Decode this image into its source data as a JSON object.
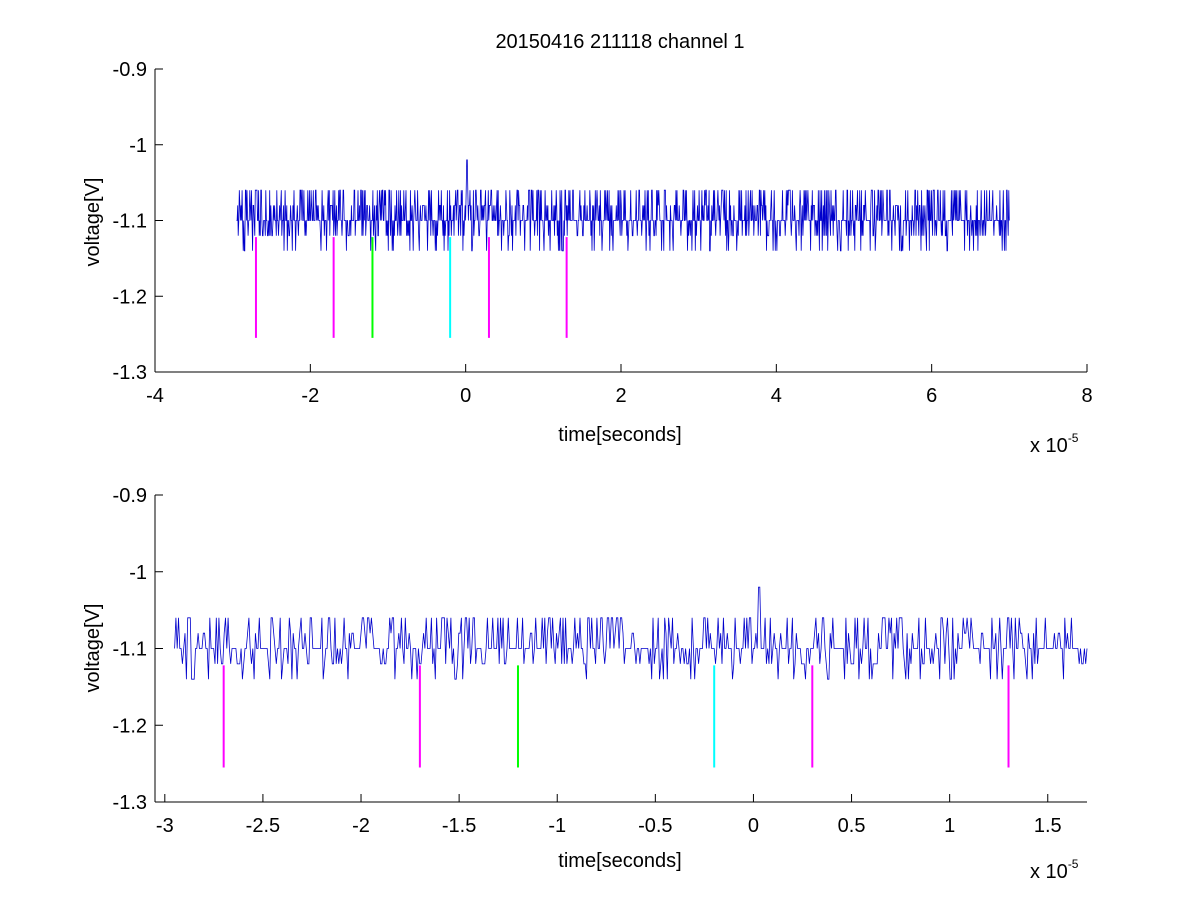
{
  "figure": {
    "title": "20150416 211118 channel 1"
  },
  "chart_data": [
    {
      "type": "line",
      "xlabel": "time[seconds]",
      "ylabel": "voltage[V]",
      "xlim": [
        -4,
        8
      ],
      "ylim": [
        -1.3,
        -0.9
      ],
      "x_ticks": [
        -4,
        -2,
        0,
        2,
        4,
        6,
        8
      ],
      "x_tick_labels": [
        "-4",
        "-2",
        "0",
        "2",
        "4",
        "6",
        "8"
      ],
      "y_ticks": [
        -1.3,
        -1.2,
        -1.1,
        -1.0,
        -0.9
      ],
      "y_tick_labels": [
        "-1.3",
        "-1.2",
        "-1.1",
        "-1",
        "-0.9"
      ],
      "x_multiplier_base": "x 10",
      "x_multiplier_exp": "-5",
      "signal": {
        "color": "#0000cc",
        "x_range": [
          -2.95,
          7.0
        ],
        "baseline": -1.1,
        "levels": [
          -1.14,
          -1.12,
          -1.1,
          -1.08,
          -1.06
        ],
        "spike": {
          "x": 0.02,
          "y": -1.02
        }
      },
      "markers": [
        {
          "x": -2.7,
          "y_top": -1.122,
          "y_bottom": -1.255,
          "color": "#ff00ff"
        },
        {
          "x": -1.7,
          "y_top": -1.122,
          "y_bottom": -1.255,
          "color": "#ff00ff"
        },
        {
          "x": -1.2,
          "y_top": -1.122,
          "y_bottom": -1.255,
          "color": "#00ff00"
        },
        {
          "x": -0.2,
          "y_top": -1.122,
          "y_bottom": -1.255,
          "color": "#00ffff"
        },
        {
          "x": 0.3,
          "y_top": -1.122,
          "y_bottom": -1.255,
          "color": "#ff00ff"
        },
        {
          "x": 1.3,
          "y_top": -1.122,
          "y_bottom": -1.255,
          "color": "#ff00ff"
        }
      ]
    },
    {
      "type": "line",
      "xlabel": "time[seconds]",
      "ylabel": "voltage[V]",
      "xlim": [
        -3.05,
        1.7
      ],
      "ylim": [
        -1.3,
        -0.9
      ],
      "x_ticks": [
        -3,
        -2.5,
        -2,
        -1.5,
        -1,
        -0.5,
        0,
        0.5,
        1,
        1.5
      ],
      "x_tick_labels": [
        "-3",
        "-2.5",
        "-2",
        "-1.5",
        "-1",
        "-0.5",
        "0",
        "0.5",
        "1",
        "1.5"
      ],
      "y_ticks": [
        -1.3,
        -1.2,
        -1.1,
        -1.0,
        -0.9
      ],
      "y_tick_labels": [
        "-1.3",
        "-1.2",
        "-1.1",
        "-1",
        "-0.9"
      ],
      "x_multiplier_base": "x 10",
      "x_multiplier_exp": "-5",
      "signal": {
        "color": "#0000cc",
        "x_range": [
          -2.95,
          1.7
        ],
        "baseline": -1.1,
        "levels": [
          -1.14,
          -1.12,
          -1.1,
          -1.08,
          -1.06
        ],
        "spike": {
          "x": 0.03,
          "y": -1.02
        }
      },
      "markers": [
        {
          "x": -2.7,
          "y_top": -1.122,
          "y_bottom": -1.255,
          "color": "#ff00ff"
        },
        {
          "x": -1.7,
          "y_top": -1.122,
          "y_bottom": -1.255,
          "color": "#ff00ff"
        },
        {
          "x": -1.2,
          "y_top": -1.122,
          "y_bottom": -1.255,
          "color": "#00ff00"
        },
        {
          "x": -0.2,
          "y_top": -1.122,
          "y_bottom": -1.255,
          "color": "#00ffff"
        },
        {
          "x": 0.3,
          "y_top": -1.122,
          "y_bottom": -1.255,
          "color": "#ff00ff"
        },
        {
          "x": 1.3,
          "y_top": -1.122,
          "y_bottom": -1.255,
          "color": "#ff00ff"
        }
      ]
    }
  ]
}
